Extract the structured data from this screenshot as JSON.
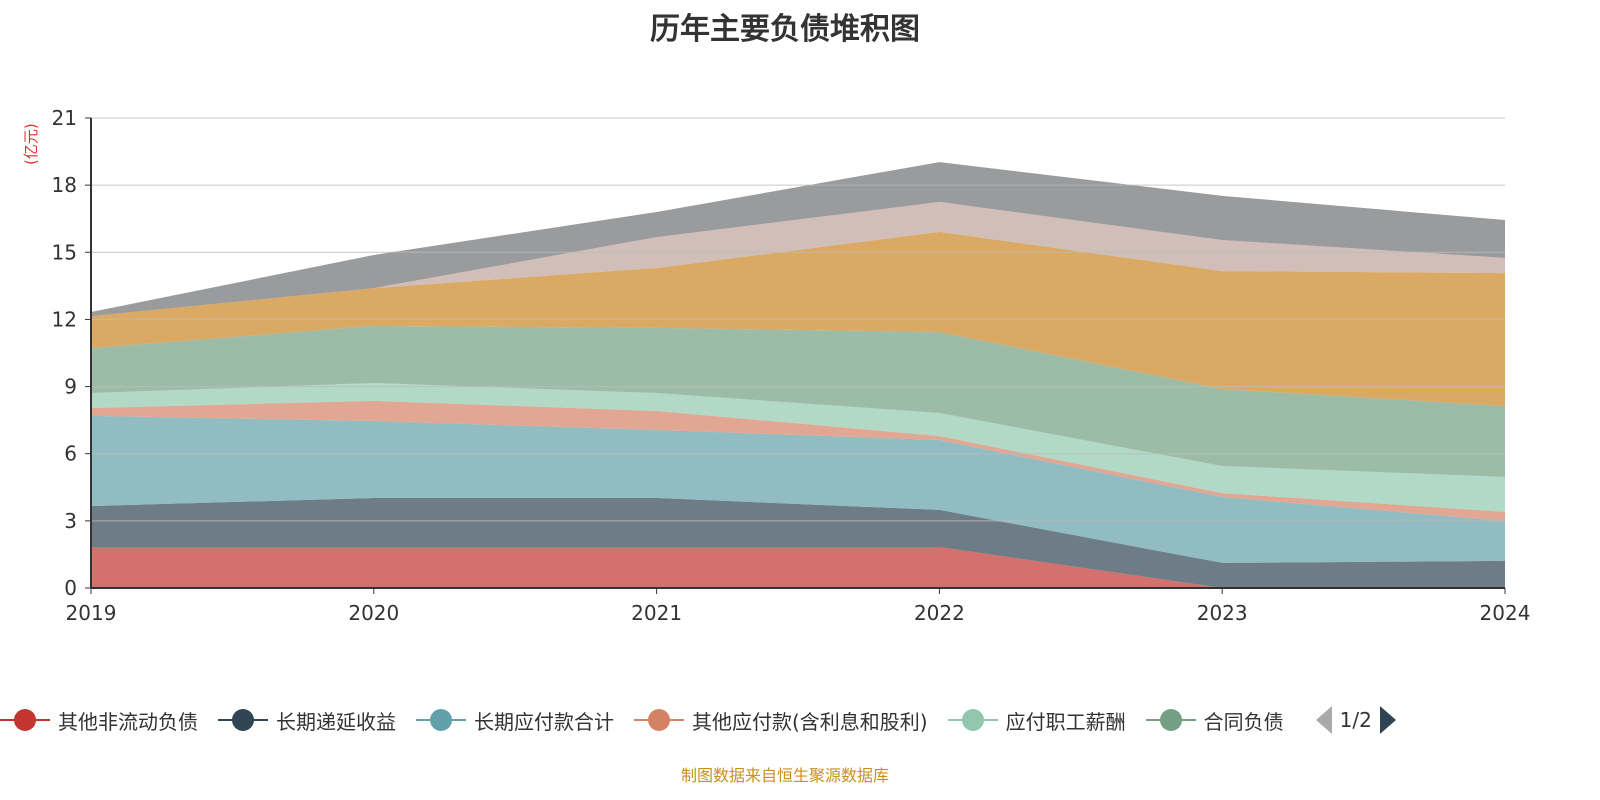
{
  "chart_data": {
    "type": "area",
    "stacked": true,
    "title": "历年主要负债堆积图",
    "ylabel": "(亿元)",
    "xlabel": "",
    "ylim": [
      0,
      21
    ],
    "yticks": [
      "0",
      "3",
      "6",
      "9",
      "12",
      "15",
      "18",
      "21"
    ],
    "categories": [
      "2019",
      "2020",
      "2021",
      "2022",
      "2023",
      "2024"
    ],
    "grid": true,
    "legend_position": "bottom",
    "legend_page": "1/2",
    "source": "制图数据来自恒生聚源数据库",
    "series": [
      {
        "name": "其他非流动负债",
        "color": "#c23531",
        "values": [
          1.83,
          1.83,
          1.83,
          1.83,
          0,
          0
        ]
      },
      {
        "name": "长期递延收益",
        "color": "#2f4554",
        "values": [
          1.83,
          2.19,
          2.19,
          1.66,
          1.12,
          1.21
        ]
      },
      {
        "name": "长期应付款合计",
        "color": "#61a0a8",
        "values": [
          4.03,
          3.44,
          3.04,
          3.12,
          2.95,
          1.78
        ]
      },
      {
        "name": "其他应付款(含利息和股利)",
        "color": "#d48265",
        "values": [
          0.35,
          0.9,
          0.85,
          0.18,
          0.17,
          0.41
        ]
      },
      {
        "name": "应付职工薪酬",
        "color": "#91c7ae",
        "values": [
          0.67,
          0.8,
          0.8,
          1.03,
          1.21,
          1.56
        ]
      },
      {
        "name": "合同负债",
        "color": "#749f83",
        "values": [
          2.01,
          2.55,
          2.91,
          3.62,
          3.44,
          3.17
        ]
      },
      {
        "name": "",
        "color": "#ca8622",
        "values": [
          1.43,
          1.69,
          2.68,
          4.47,
          5.27,
          5.94
        ]
      },
      {
        "name": "",
        "color": "#bda29a",
        "values": [
          0,
          0,
          1.38,
          1.34,
          1.39,
          0.68
        ]
      },
      {
        "name": "",
        "color": "#6e7074",
        "values": [
          0.18,
          1.48,
          1.12,
          1.78,
          1.97,
          1.69
        ]
      }
    ]
  }
}
